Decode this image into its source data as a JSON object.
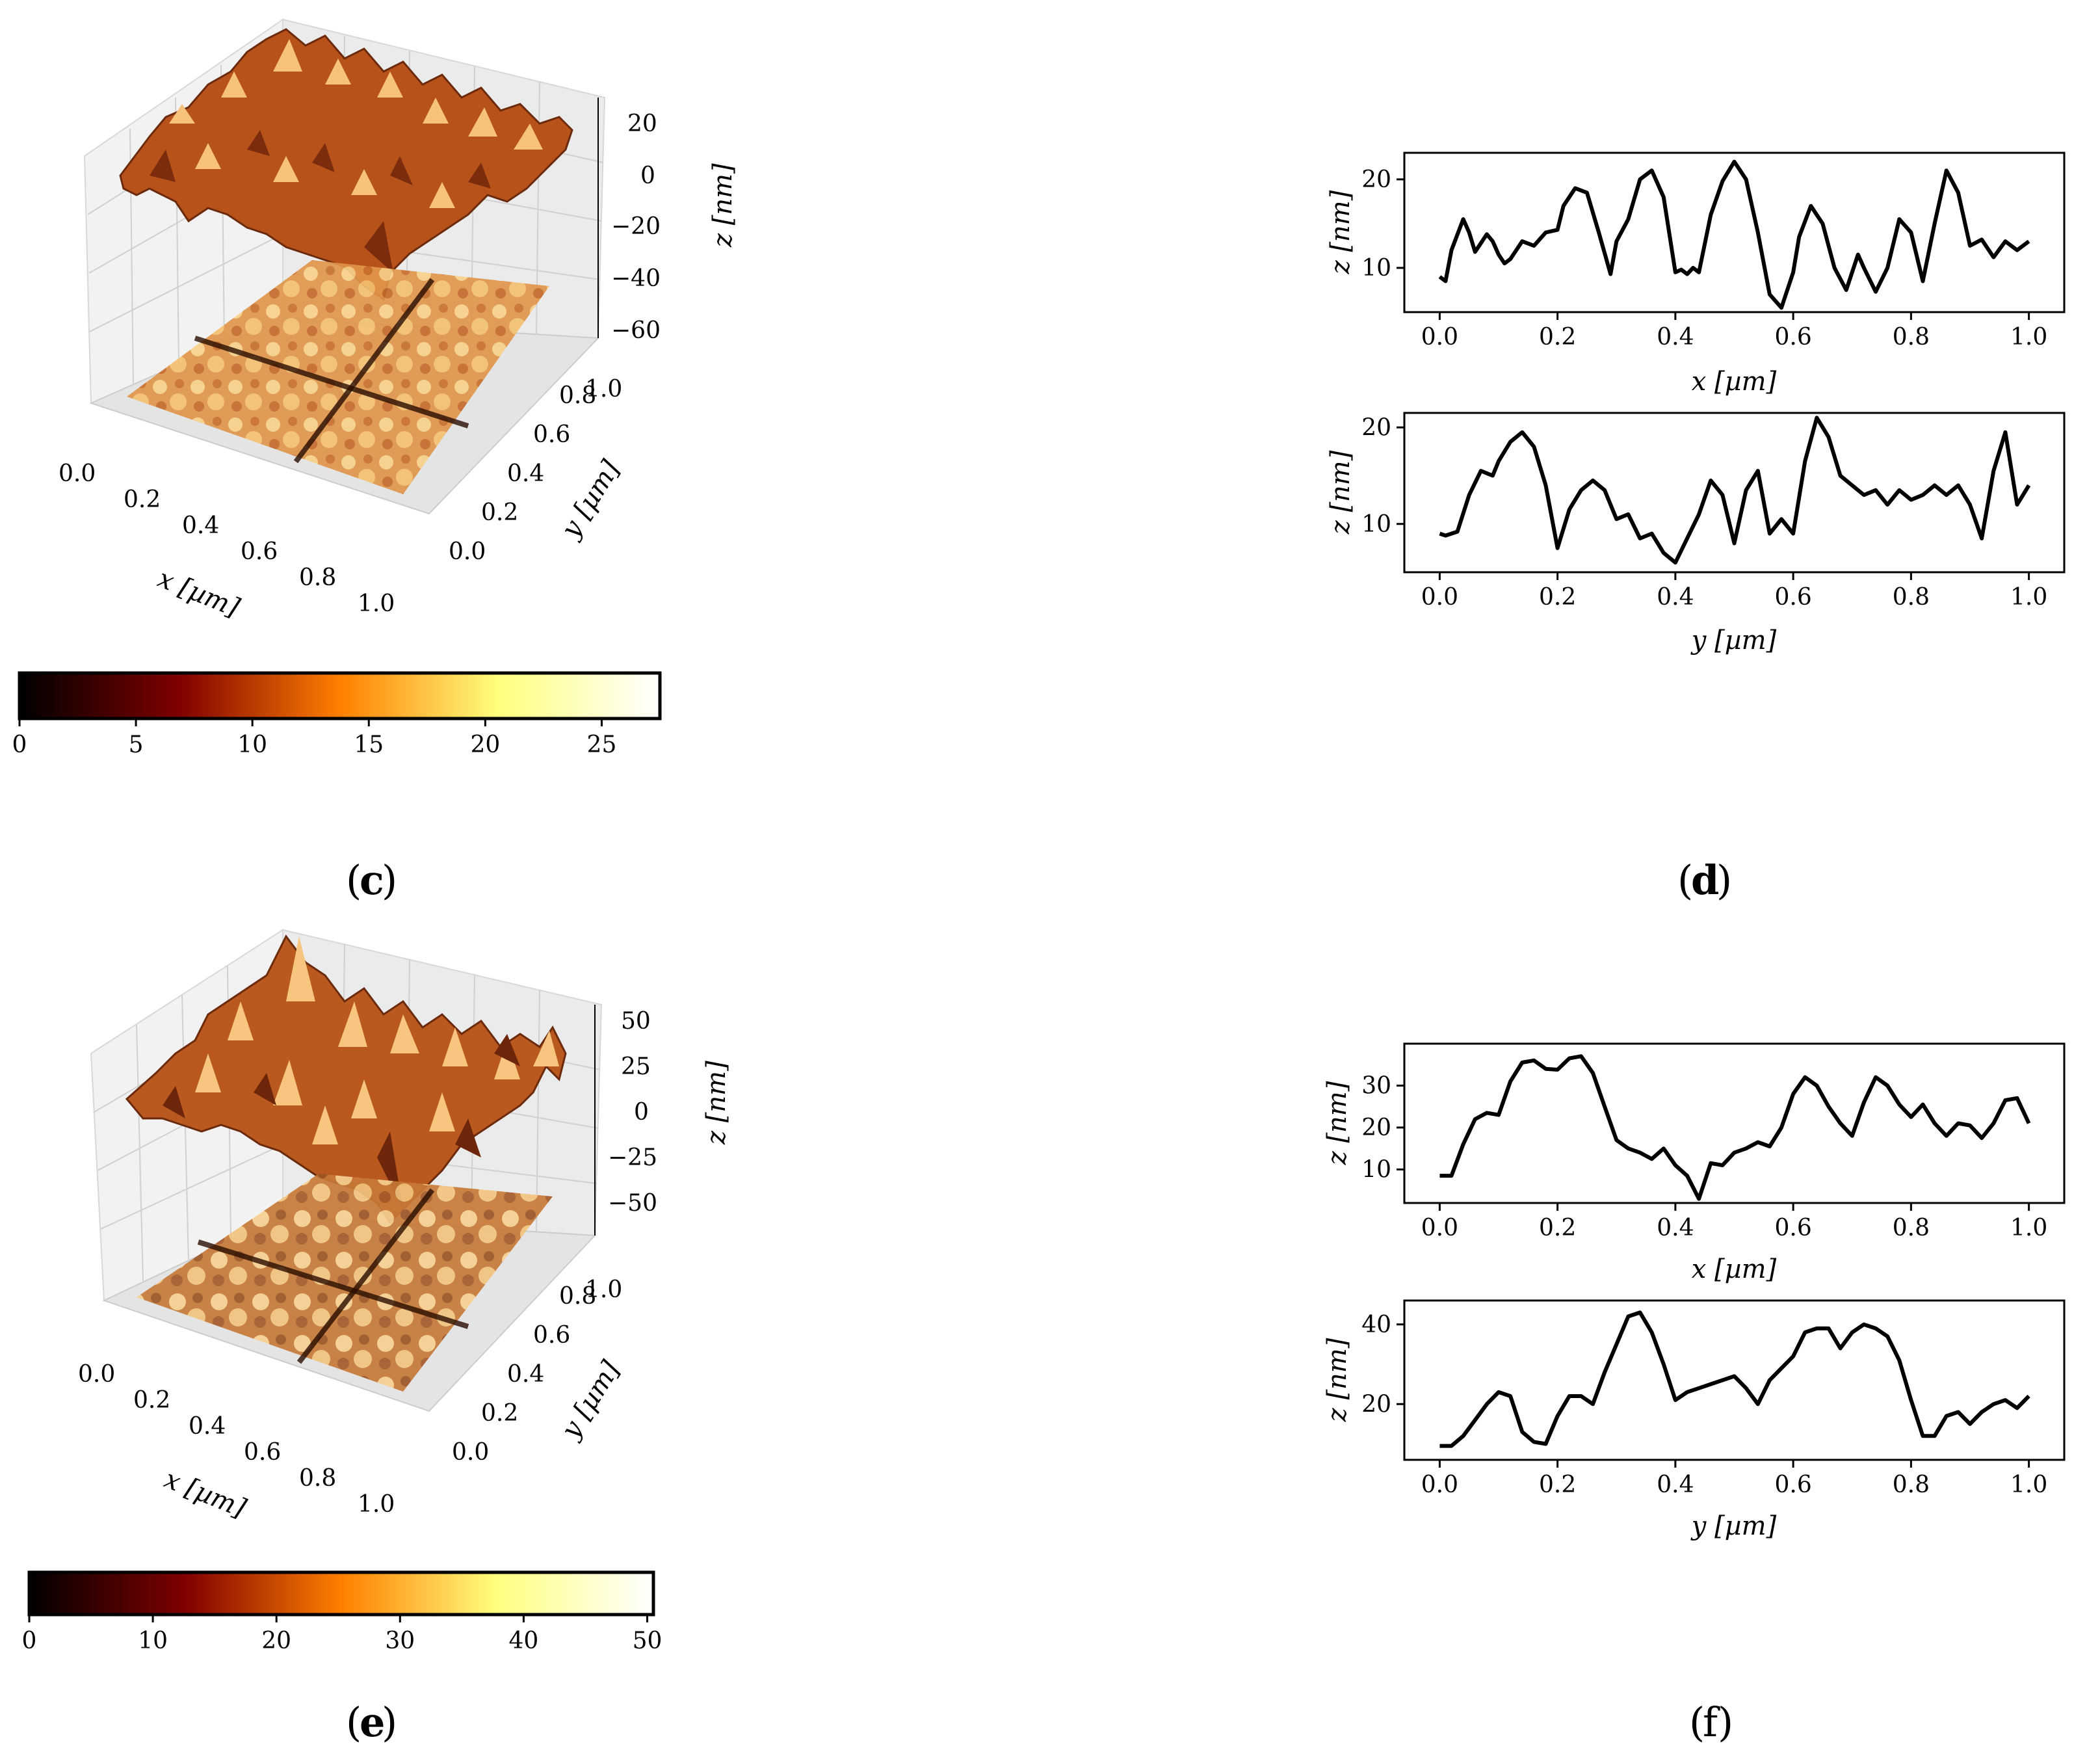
{
  "panels": [
    {
      "id": "c",
      "label": "c"
    },
    {
      "id": "d",
      "label": "d"
    },
    {
      "id": "e",
      "label": "e"
    },
    {
      "id": "f",
      "label": "f"
    }
  ],
  "chart_data": [
    {
      "id": "c_surface",
      "type": "surface3d",
      "xlabel": "x [µm]",
      "ylabel": "y [µm]",
      "zlabel": "z [nm]",
      "xticks": [
        "0.0",
        "0.2",
        "0.4",
        "0.6",
        "0.8",
        "1.0"
      ],
      "yticks": [
        "0.0",
        "0.2",
        "0.4",
        "0.6",
        "0.8",
        "1.0"
      ],
      "zticks": [
        "20",
        "0",
        "−20",
        "−40",
        "−60"
      ],
      "zlim": [
        -60,
        30
      ]
    },
    {
      "id": "c_colorbar",
      "type": "colorbar",
      "colormap": "afmhot",
      "range": [
        0,
        27.5
      ],
      "ticks": [
        0,
        5,
        10,
        15,
        20,
        25
      ],
      "tick_labels": [
        "0",
        "5",
        "10",
        "15",
        "20",
        "25"
      ]
    },
    {
      "id": "d_x",
      "type": "line",
      "xlabel": "x [µm]",
      "ylabel": "z [nm]",
      "xlim": [
        -0.06,
        1.06
      ],
      "ylim": [
        5,
        23
      ],
      "yticks": [
        10,
        20
      ],
      "xticks": [
        0.0,
        0.2,
        0.4,
        0.6,
        0.8,
        1.0
      ],
      "xtick_labels": [
        "0.0",
        "0.2",
        "0.4",
        "0.6",
        "0.8",
        "1.0"
      ],
      "ytick_labels": [
        "10",
        "20"
      ],
      "x": [
        0,
        0.01,
        0.02,
        0.04,
        0.05,
        0.06,
        0.08,
        0.09,
        0.1,
        0.11,
        0.12,
        0.14,
        0.16,
        0.18,
        0.2,
        0.21,
        0.23,
        0.25,
        0.27,
        0.29,
        0.3,
        0.32,
        0.34,
        0.36,
        0.38,
        0.4,
        0.41,
        0.42,
        0.43,
        0.44,
        0.46,
        0.48,
        0.5,
        0.52,
        0.54,
        0.56,
        0.58,
        0.6,
        0.61,
        0.63,
        0.65,
        0.67,
        0.69,
        0.71,
        0.72,
        0.74,
        0.76,
        0.78,
        0.8,
        0.82,
        0.84,
        0.86,
        0.88,
        0.9,
        0.92,
        0.94,
        0.96,
        0.98,
        1.0
      ],
      "y": [
        9,
        8.5,
        12,
        15.5,
        14,
        11.8,
        13.8,
        13,
        11.5,
        10.5,
        11,
        13,
        12.5,
        14,
        14.3,
        17,
        19,
        18.5,
        14,
        9.3,
        13,
        15.5,
        20,
        21,
        18,
        9.5,
        9.8,
        9.3,
        10,
        9.5,
        16,
        19.8,
        22,
        20,
        14,
        7,
        5.5,
        9.5,
        13.5,
        17,
        15,
        10,
        7.5,
        11.5,
        10,
        7.3,
        10,
        15.5,
        14,
        8.5,
        15,
        21,
        18.5,
        12.5,
        13.2,
        11.2,
        13,
        12,
        13
      ]
    },
    {
      "id": "d_y",
      "type": "line",
      "xlabel": "y [µm]",
      "ylabel": "z [nm]",
      "xlim": [
        -0.06,
        1.06
      ],
      "ylim": [
        5,
        21.5
      ],
      "yticks": [
        10,
        20
      ],
      "xticks": [
        0.0,
        0.2,
        0.4,
        0.6,
        0.8,
        1.0
      ],
      "xtick_labels": [
        "0.0",
        "0.2",
        "0.4",
        "0.6",
        "0.8",
        "1.0"
      ],
      "ytick_labels": [
        "10",
        "20"
      ],
      "x": [
        0,
        0.01,
        0.02,
        0.03,
        0.05,
        0.07,
        0.09,
        0.1,
        0.12,
        0.14,
        0.16,
        0.18,
        0.2,
        0.22,
        0.24,
        0.26,
        0.28,
        0.3,
        0.32,
        0.34,
        0.36,
        0.38,
        0.4,
        0.42,
        0.44,
        0.46,
        0.48,
        0.5,
        0.52,
        0.54,
        0.56,
        0.58,
        0.6,
        0.62,
        0.64,
        0.66,
        0.68,
        0.7,
        0.72,
        0.74,
        0.76,
        0.78,
        0.8,
        0.82,
        0.84,
        0.86,
        0.88,
        0.9,
        0.92,
        0.94,
        0.96,
        0.98,
        1.0
      ],
      "y": [
        9,
        8.8,
        9,
        9.2,
        13,
        15.5,
        15,
        16.5,
        18.5,
        19.5,
        18,
        14,
        7.5,
        11.5,
        13.5,
        14.5,
        13.5,
        10.5,
        11,
        8.5,
        9,
        7,
        6,
        8.5,
        11,
        14.5,
        13,
        8,
        13.5,
        15.5,
        9,
        10.5,
        9,
        16.5,
        21,
        19,
        15,
        14,
        13,
        13.5,
        12,
        13.5,
        12.5,
        13,
        14,
        13,
        14,
        12,
        8.5,
        15.5,
        19.5,
        12,
        14
      ]
    },
    {
      "id": "e_surface",
      "type": "surface3d",
      "xlabel": "x [µm]",
      "ylabel": "y [µm]",
      "zlabel": "z [nm]",
      "xticks": [
        "0.0",
        "0.2",
        "0.4",
        "0.6",
        "0.8",
        "1.0"
      ],
      "yticks": [
        "0.0",
        "0.2",
        "0.4",
        "0.6",
        "0.8",
        "1.0"
      ],
      "zticks": [
        "50",
        "25",
        "0",
        "−25",
        "−50"
      ],
      "zlim": [
        -60,
        55
      ]
    },
    {
      "id": "e_colorbar",
      "type": "colorbar",
      "colormap": "afmhot",
      "range": [
        0,
        50.5
      ],
      "ticks": [
        0,
        10,
        20,
        30,
        40,
        50
      ],
      "tick_labels": [
        "0",
        "10",
        "20",
        "30",
        "40",
        "50"
      ]
    },
    {
      "id": "f_x",
      "type": "line",
      "xlabel": "x [µm]",
      "ylabel": "z [nm]",
      "xlim": [
        -0.06,
        1.06
      ],
      "ylim": [
        2,
        40
      ],
      "yticks": [
        10,
        20,
        30
      ],
      "xticks": [
        0.0,
        0.2,
        0.4,
        0.6,
        0.8,
        1.0
      ],
      "xtick_labels": [
        "0.0",
        "0.2",
        "0.4",
        "0.6",
        "0.8",
        "1.0"
      ],
      "ytick_labels": [
        "10",
        "20",
        "30"
      ],
      "x": [
        0,
        0.01,
        0.02,
        0.04,
        0.06,
        0.08,
        0.1,
        0.12,
        0.14,
        0.16,
        0.18,
        0.2,
        0.22,
        0.24,
        0.26,
        0.28,
        0.3,
        0.32,
        0.34,
        0.36,
        0.38,
        0.4,
        0.42,
        0.44,
        0.46,
        0.48,
        0.5,
        0.52,
        0.54,
        0.56,
        0.58,
        0.6,
        0.62,
        0.64,
        0.66,
        0.68,
        0.7,
        0.72,
        0.74,
        0.76,
        0.78,
        0.8,
        0.82,
        0.84,
        0.86,
        0.88,
        0.9,
        0.92,
        0.94,
        0.96,
        0.98,
        1.0
      ],
      "y": [
        8.5,
        8.5,
        8.5,
        16,
        22,
        23.5,
        23,
        31,
        35.5,
        36,
        34,
        33.8,
        36.5,
        37,
        33,
        25,
        17,
        15,
        14,
        12.5,
        15,
        11,
        8.5,
        3,
        11.5,
        11,
        14,
        15,
        16.5,
        15.5,
        20,
        28,
        32,
        30,
        25,
        21,
        18,
        26,
        32,
        30,
        25.5,
        22.5,
        25.5,
        21,
        18,
        21,
        20.5,
        17.5,
        21,
        26.5,
        27,
        21
      ]
    },
    {
      "id": "f_y",
      "type": "line",
      "xlabel": "y [µm]",
      "ylabel": "z [nm]",
      "xlim": [
        -0.06,
        1.06
      ],
      "ylim": [
        6,
        46
      ],
      "yticks": [
        20,
        40
      ],
      "xticks": [
        0.0,
        0.2,
        0.4,
        0.6,
        0.8,
        1.0
      ],
      "xtick_labels": [
        "0.0",
        "0.2",
        "0.4",
        "0.6",
        "0.8",
        "1.0"
      ],
      "ytick_labels": [
        "20",
        "40"
      ],
      "x": [
        0,
        0.02,
        0.04,
        0.06,
        0.08,
        0.1,
        0.12,
        0.14,
        0.16,
        0.18,
        0.2,
        0.22,
        0.24,
        0.26,
        0.28,
        0.3,
        0.32,
        0.34,
        0.36,
        0.38,
        0.4,
        0.42,
        0.44,
        0.46,
        0.48,
        0.5,
        0.52,
        0.54,
        0.56,
        0.58,
        0.6,
        0.62,
        0.64,
        0.66,
        0.68,
        0.7,
        0.72,
        0.74,
        0.76,
        0.78,
        0.8,
        0.82,
        0.84,
        0.86,
        0.88,
        0.9,
        0.92,
        0.94,
        0.96,
        0.98,
        1.0
      ],
      "y": [
        9.5,
        9.5,
        12,
        16,
        20,
        23,
        22,
        13,
        10.5,
        10,
        17,
        22,
        22,
        20,
        28,
        35,
        42,
        43,
        38,
        30,
        21,
        23,
        24,
        25,
        26,
        27,
        24,
        20,
        26,
        29,
        32,
        38,
        39,
        39,
        34,
        38,
        40,
        39,
        37,
        31,
        21,
        12,
        12,
        17,
        18,
        15,
        18,
        20,
        21,
        19,
        22
      ]
    }
  ]
}
